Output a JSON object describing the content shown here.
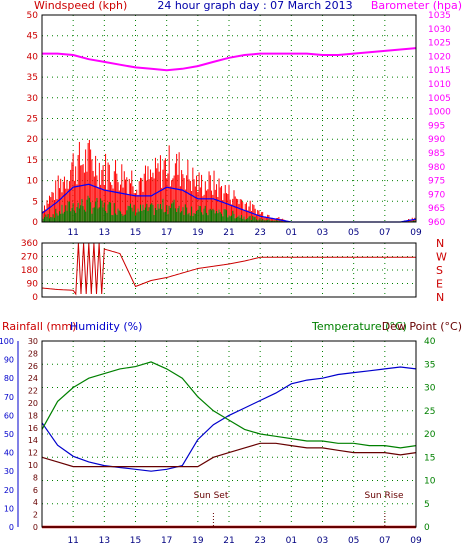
{
  "header": {
    "title": "24 hour graph day : 07 March 2013",
    "left_label": "Windspeed (kph)",
    "right_label": "Barometer (hpa)"
  },
  "lower_header": {
    "rainfall_label": "Rainfall (mm)",
    "humidity_label": "Humidity (%)",
    "temperature_label": "Temperature (°C)",
    "dewpoint_label": "Dew Point (°C)"
  },
  "annotations": {
    "sunset": "Sun Set",
    "sunrise": "Sun Rise"
  },
  "colors": {
    "wind_gust": "#ff0000",
    "wind_avg": "#0000ff",
    "wind_low": "#008000",
    "barometer": "#ff00ff",
    "direction": "#cc0000",
    "humidity": "#0000cc",
    "temperature": "#008000",
    "dewpoint": "#660000",
    "rainfall": "#cc0000",
    "grid": "#008000"
  },
  "chart_data": [
    {
      "type": "line",
      "title": "24 hour graph day : 07 March 2013",
      "xlabel": "",
      "ylabel": "Windspeed (kph)",
      "ylabel_right": "Barometer (hpa)",
      "x_ticks": [
        "11",
        "13",
        "15",
        "17",
        "19",
        "21",
        "23",
        "01",
        "03",
        "05",
        "07",
        "09"
      ],
      "x_hours": [
        9,
        10,
        11,
        12,
        13,
        14,
        15,
        16,
        17,
        18,
        19,
        20,
        21,
        22,
        23,
        24,
        25,
        26,
        27,
        28,
        29,
        30,
        31,
        32,
        33
      ],
      "ylim": [
        0,
        50
      ],
      "y_ticks": [
        "0",
        "5",
        "10",
        "15",
        "20",
        "25",
        "30",
        "35",
        "40",
        "45",
        "50"
      ],
      "ylim_right": [
        960,
        1035
      ],
      "y_ticks_right": [
        "960",
        "965",
        "970",
        "975",
        "980",
        "985",
        "990",
        "995",
        "1000",
        "1005",
        "1010",
        "1015",
        "1020",
        "1025",
        "1030",
        "1035"
      ],
      "grid": true,
      "series": [
        {
          "name": "Windspeed (kph)",
          "values": [
            3,
            7,
            12,
            13,
            11,
            10,
            9,
            9,
            12,
            11,
            8,
            8,
            6,
            4,
            2,
            1,
            0,
            0,
            0,
            0,
            0,
            0,
            0,
            0,
            1
          ]
        },
        {
          "name": "Barometer (hpa)",
          "values": [
            1021,
            1021,
            1020.5,
            1019,
            1018,
            1017,
            1016,
            1015.5,
            1015,
            1015.5,
            1016.5,
            1018,
            1019.5,
            1020.5,
            1021,
            1021,
            1021,
            1021,
            1020.5,
            1020.5,
            1021,
            1021.5,
            1022,
            1022.5,
            1023
          ]
        }
      ]
    },
    {
      "type": "line",
      "ylabel_right": "N W S E N",
      "right_letters": [
        "N",
        "W",
        "S",
        "E",
        "N"
      ],
      "ylim": [
        0,
        360
      ],
      "y_ticks": [
        "0",
        "45",
        "90",
        "135",
        "180",
        "225",
        "270",
        "315",
        "360"
      ],
      "grid": true,
      "series": [
        {
          "name": "Wind Direction",
          "values": [
            60,
            50,
            45,
            40,
            320,
            290,
            70,
            110,
            130,
            160,
            190,
            205,
            220,
            240,
            265,
            265,
            265,
            265,
            265,
            265,
            265,
            265,
            265,
            265,
            265
          ]
        }
      ]
    },
    {
      "type": "line",
      "ylim": [
        0,
        100
      ],
      "y_ticks_left": [
        "0",
        "10",
        "20",
        "30",
        "40",
        "50",
        "60",
        "70",
        "80",
        "90",
        "100"
      ],
      "y_ticks_mid": [
        "0",
        "2",
        "4",
        "6",
        "8",
        "10",
        "12",
        "14",
        "16",
        "18",
        "20",
        "22",
        "24",
        "26",
        "28",
        "30"
      ],
      "y_ticks_right": [
        "0",
        "5",
        "10",
        "15",
        "20",
        "25",
        "30",
        "35",
        "40"
      ],
      "grid": true,
      "series": [
        {
          "name": "Humidity (%)",
          "values": [
            56,
            44,
            38,
            35,
            33,
            32,
            31,
            30,
            31,
            33,
            47,
            55,
            60,
            64,
            68,
            72,
            77,
            79,
            80,
            82,
            83,
            84,
            85,
            86,
            85
          ]
        },
        {
          "name": "Temperature (°C)",
          "values": [
            21,
            27,
            30,
            32,
            33,
            34,
            34.5,
            35.5,
            34,
            32,
            28,
            25,
            23,
            21,
            20,
            19.5,
            19,
            18.5,
            18.5,
            18,
            18,
            17.5,
            17.5,
            17,
            17.5
          ]
        },
        {
          "name": "Dew Point (°C)",
          "values": [
            15,
            14,
            13,
            13,
            13,
            13,
            13,
            13,
            13,
            13,
            13,
            15,
            16,
            17,
            18,
            18,
            17.5,
            17,
            17,
            16.5,
            16,
            16,
            16,
            15.5,
            16
          ]
        },
        {
          "name": "Rainfall (mm)",
          "values": [
            0,
            0,
            0,
            0,
            0,
            0,
            0,
            0,
            0,
            0,
            0,
            0,
            0,
            0,
            0,
            0,
            0,
            0,
            0,
            0,
            0,
            0,
            0,
            0,
            0
          ]
        }
      ]
    }
  ]
}
